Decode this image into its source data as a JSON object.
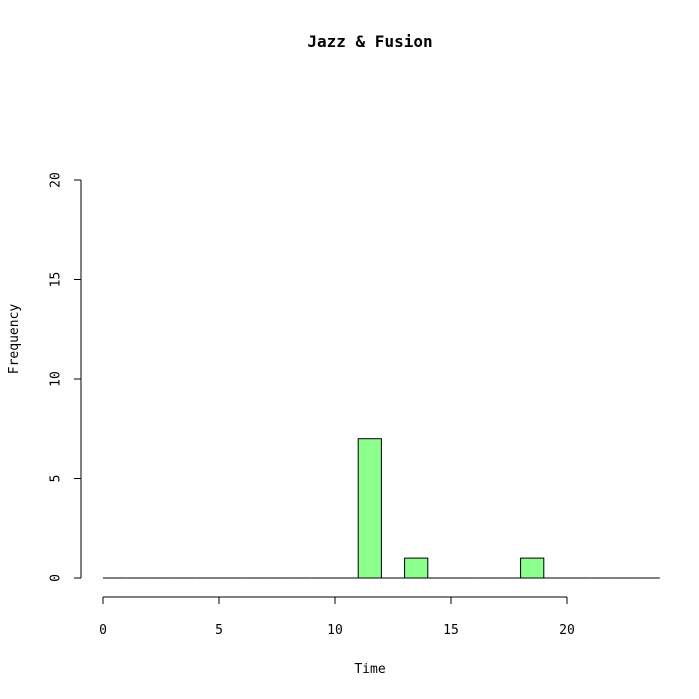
{
  "chart_data": {
    "type": "bar",
    "title": "Jazz & Fusion",
    "xlabel": "Time",
    "ylabel": "Frequency",
    "xlim": [
      0,
      24
    ],
    "ylim": [
      0,
      20
    ],
    "x_ticks": [
      0,
      5,
      10,
      15,
      20
    ],
    "y_ticks": [
      0,
      5,
      10,
      15,
      20
    ],
    "bin_width": 1,
    "bins": [
      {
        "start": 0,
        "count": 0
      },
      {
        "start": 1,
        "count": 0
      },
      {
        "start": 2,
        "count": 0
      },
      {
        "start": 3,
        "count": 0
      },
      {
        "start": 4,
        "count": 0
      },
      {
        "start": 5,
        "count": 0
      },
      {
        "start": 6,
        "count": 0
      },
      {
        "start": 7,
        "count": 0
      },
      {
        "start": 8,
        "count": 0
      },
      {
        "start": 9,
        "count": 0
      },
      {
        "start": 10,
        "count": 0
      },
      {
        "start": 11,
        "count": 7
      },
      {
        "start": 12,
        "count": 0
      },
      {
        "start": 13,
        "count": 1
      },
      {
        "start": 14,
        "count": 0
      },
      {
        "start": 15,
        "count": 0
      },
      {
        "start": 16,
        "count": 0
      },
      {
        "start": 17,
        "count": 0
      },
      {
        "start": 18,
        "count": 1
      },
      {
        "start": 19,
        "count": 0
      },
      {
        "start": 20,
        "count": 0
      },
      {
        "start": 21,
        "count": 0
      },
      {
        "start": 22,
        "count": 0
      },
      {
        "start": 23,
        "count": 0
      }
    ],
    "bar_color": "#8CFF8C",
    "grid": false
  }
}
